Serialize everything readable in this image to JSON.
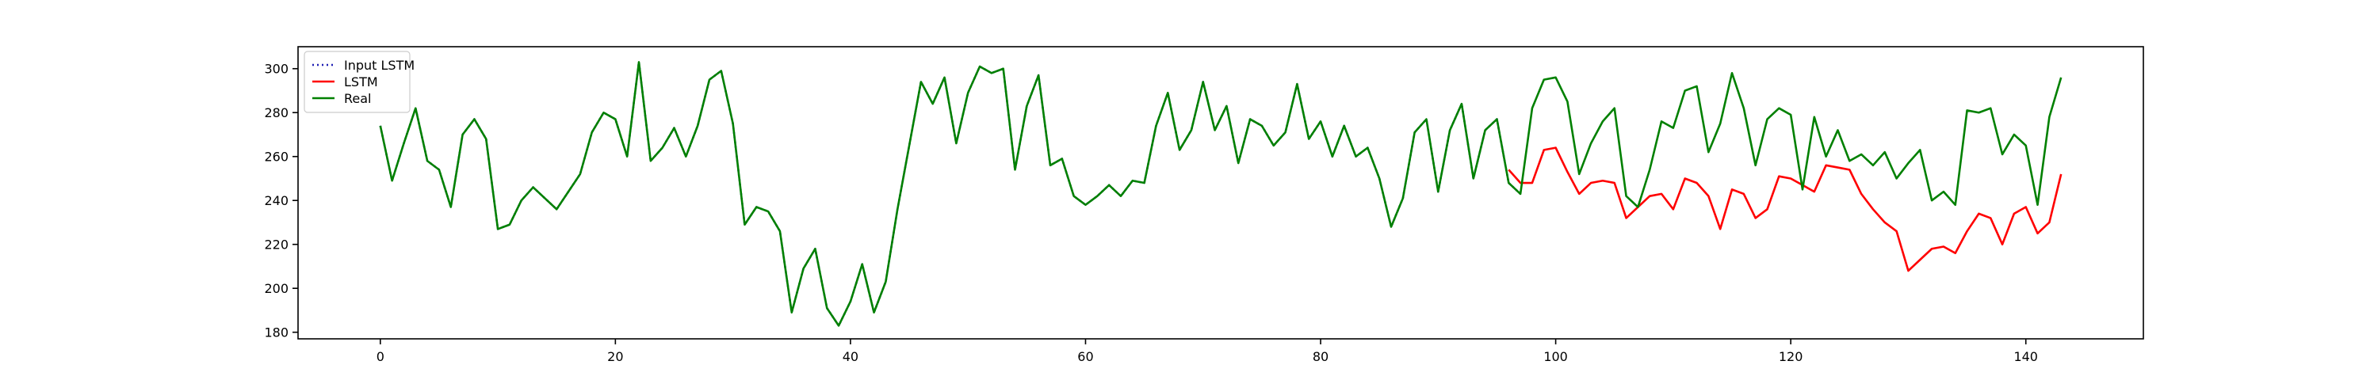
{
  "chart_data": {
    "type": "line",
    "title": "",
    "xlabel": "",
    "ylabel": "",
    "xlim": [
      -7,
      150
    ],
    "ylim": [
      177,
      310
    ],
    "xticks": [
      0,
      20,
      40,
      60,
      80,
      100,
      120,
      140
    ],
    "yticks": [
      180,
      200,
      220,
      240,
      260,
      280,
      300
    ],
    "grid": false,
    "legend_position": "top-left",
    "series": [
      {
        "name": "Input LSTM",
        "color": "#1f1fb4",
        "style": "dotted",
        "x_start": 0,
        "values": [
          274,
          249,
          266,
          282,
          258,
          254,
          237,
          270,
          277,
          268,
          227,
          229,
          240,
          246,
          241,
          236,
          244,
          252,
          271,
          280,
          277,
          260,
          303,
          258,
          264,
          273,
          260,
          274,
          295,
          299,
          275,
          229,
          237,
          235,
          226,
          189,
          209,
          218,
          191,
          183,
          194,
          211,
          189,
          203,
          236,
          265,
          294,
          284,
          296,
          266,
          289,
          301,
          298,
          300,
          254,
          283,
          297,
          256,
          259,
          242,
          238,
          242,
          247,
          242,
          249,
          248,
          274,
          289,
          263,
          272,
          294,
          272,
          283,
          257,
          277,
          274,
          265,
          271,
          293,
          268,
          276,
          260,
          274,
          260,
          264,
          250,
          228,
          241,
          271,
          277,
          244,
          272,
          284,
          250,
          272,
          277,
          248,
          243
        ]
      },
      {
        "name": "LSTM",
        "color": "#ff0000",
        "style": "solid",
        "x_start": 96,
        "values": [
          254,
          248,
          248,
          263,
          264,
          253,
          243,
          248,
          249,
          248,
          232,
          237,
          242,
          243,
          236,
          250,
          248,
          242,
          227,
          245,
          243,
          232,
          236,
          251,
          250,
          247,
          244,
          256,
          255,
          254,
          243,
          236,
          230,
          226,
          208,
          213,
          218,
          219,
          216,
          226,
          234,
          232,
          220,
          234,
          237,
          225,
          230,
          252
        ]
      },
      {
        "name": "Real",
        "color": "#008000",
        "style": "solid",
        "x_start": 0,
        "values": [
          274,
          249,
          266,
          282,
          258,
          254,
          237,
          270,
          277,
          268,
          227,
          229,
          240,
          246,
          241,
          236,
          244,
          252,
          271,
          280,
          277,
          260,
          303,
          258,
          264,
          273,
          260,
          274,
          295,
          299,
          275,
          229,
          237,
          235,
          226,
          189,
          209,
          218,
          191,
          183,
          194,
          211,
          189,
          203,
          236,
          265,
          294,
          284,
          296,
          266,
          289,
          301,
          298,
          300,
          254,
          283,
          297,
          256,
          259,
          242,
          238,
          242,
          247,
          242,
          249,
          248,
          274,
          289,
          263,
          272,
          294,
          272,
          283,
          257,
          277,
          274,
          265,
          271,
          293,
          268,
          276,
          260,
          274,
          260,
          264,
          250,
          228,
          241,
          271,
          277,
          244,
          272,
          284,
          250,
          272,
          277,
          248,
          243,
          282,
          295,
          296,
          285,
          252,
          266,
          276,
          282,
          242,
          237,
          254,
          276,
          273,
          290,
          292,
          262,
          275,
          298,
          282,
          256,
          277,
          282,
          279,
          245,
          278,
          260,
          272,
          258,
          261,
          256,
          262,
          250,
          257,
          263,
          240,
          244,
          238,
          281,
          280,
          282,
          261,
          270,
          265,
          238,
          278,
          296
        ]
      }
    ]
  }
}
